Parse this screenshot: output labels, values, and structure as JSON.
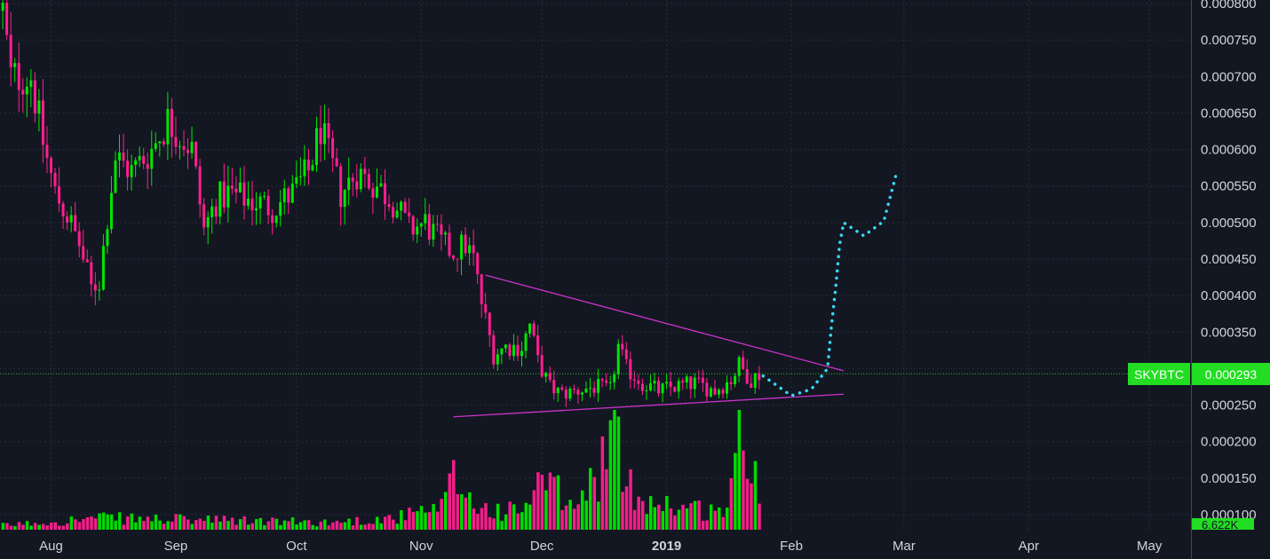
{
  "chart_data": {
    "type": "candlestick",
    "symbol": "SKYBTC",
    "last_price": "0.000293",
    "volume_label": "6.622K",
    "colors": {
      "background": "#131722",
      "up": "#00e600",
      "down": "#ff1f8f",
      "grid": "#2a2e39",
      "text": "#d1d4dc",
      "trendline": "#cc33cc",
      "projection": "#38d9f5",
      "price_line": "#2fbf2f",
      "label_bg": "#22dd22"
    },
    "y_axis": {
      "range": [
        8.5e-05,
        0.000805
      ],
      "ticks": [
        "0.000100",
        "0.000150",
        "0.000200",
        "0.000250",
        "0.000300",
        "0.000350",
        "0.000400",
        "0.000450",
        "0.000500",
        "0.000550",
        "0.000600",
        "0.000650",
        "0.000700",
        "0.000750",
        "0.000800"
      ]
    },
    "x_axis": {
      "labels": [
        {
          "text": "Aug",
          "date": "2018-08-01"
        },
        {
          "text": "Sep",
          "date": "2018-09-01"
        },
        {
          "text": "Oct",
          "date": "2018-10-01"
        },
        {
          "text": "Nov",
          "date": "2018-11-01"
        },
        {
          "text": "Dec",
          "date": "2018-12-01"
        },
        {
          "text": "2019",
          "date": "2019-01-01",
          "bold": true
        },
        {
          "text": "Feb",
          "date": "2019-02-01"
        },
        {
          "text": "Mar",
          "date": "2019-03-01"
        },
        {
          "text": "Apr",
          "date": "2019-04-01"
        },
        {
          "text": "May",
          "date": "2019-05-01"
        }
      ]
    },
    "price_path": [
      [
        "2018-07-20",
        0.00079
      ],
      [
        "2018-07-22",
        0.0007
      ],
      [
        "2018-07-27",
        0.0007
      ],
      [
        "2018-07-30",
        0.00061
      ],
      [
        "2018-08-02",
        0.00054
      ],
      [
        "2018-08-05",
        0.00051
      ],
      [
        "2018-08-08",
        0.00047
      ],
      [
        "2018-08-11",
        0.00041
      ],
      [
        "2018-08-13",
        0.00042
      ],
      [
        "2018-08-15",
        0.00051
      ],
      [
        "2018-08-17",
        0.00059
      ],
      [
        "2018-08-21",
        0.00057
      ],
      [
        "2018-08-26",
        0.0006
      ],
      [
        "2018-08-30",
        0.00064
      ],
      [
        "2018-09-05",
        0.0006
      ],
      [
        "2018-09-08",
        0.00049
      ],
      [
        "2018-09-11",
        0.00053
      ],
      [
        "2018-09-14",
        0.00054
      ],
      [
        "2018-09-20",
        0.00053
      ],
      [
        "2018-09-25",
        0.00052
      ],
      [
        "2018-09-30",
        0.00054
      ],
      [
        "2018-10-04",
        0.00057
      ],
      [
        "2018-10-07",
        0.00063
      ],
      [
        "2018-10-09",
        0.00059
      ],
      [
        "2018-10-12",
        0.00054
      ],
      [
        "2018-10-16",
        0.00057
      ],
      [
        "2018-10-21",
        0.00055
      ],
      [
        "2018-10-25",
        0.00053
      ],
      [
        "2018-10-29",
        0.00049
      ],
      [
        "2018-11-02",
        0.0005
      ],
      [
        "2018-11-06",
        0.00047
      ],
      [
        "2018-11-09",
        0.00046
      ],
      [
        "2018-11-12",
        0.00047
      ],
      [
        "2018-11-14",
        0.00045
      ],
      [
        "2018-11-16",
        0.00039
      ],
      [
        "2018-11-19",
        0.00032
      ],
      [
        "2018-11-22",
        0.00033
      ],
      [
        "2018-11-26",
        0.00033
      ],
      [
        "2018-11-28",
        0.00036
      ],
      [
        "2018-11-30",
        0.00031
      ],
      [
        "2018-12-03",
        0.000275
      ],
      [
        "2018-12-06",
        0.000265
      ],
      [
        "2018-12-10",
        0.00027
      ],
      [
        "2018-12-14",
        0.000275
      ],
      [
        "2018-12-18",
        0.00027
      ],
      [
        "2018-12-20",
        0.00033
      ],
      [
        "2018-12-22",
        0.0003
      ],
      [
        "2018-12-26",
        0.00028
      ],
      [
        "2018-12-30",
        0.00027
      ],
      [
        "2019-01-03",
        0.000275
      ],
      [
        "2019-01-08",
        0.00028
      ],
      [
        "2019-01-13",
        0.00027
      ],
      [
        "2019-01-17",
        0.000285
      ],
      [
        "2019-01-19",
        0.000305
      ],
      [
        "2019-01-22",
        0.000285
      ],
      [
        "2019-01-24",
        0.000293
      ]
    ],
    "volume_path": [
      [
        "2018-07-20",
        0.3
      ],
      [
        "2018-08-13",
        0.8
      ],
      [
        "2018-09-20",
        0.6
      ],
      [
        "2018-10-10",
        0.5
      ],
      [
        "2018-10-25",
        0.8
      ],
      [
        "2018-11-06",
        1.4
      ],
      [
        "2018-11-09",
        3.5
      ],
      [
        "2018-11-15",
        1.5
      ],
      [
        "2018-11-25",
        1.2
      ],
      [
        "2018-12-01",
        3.2
      ],
      [
        "2018-12-10",
        1.4
      ],
      [
        "2018-12-19",
        6.6
      ],
      [
        "2018-12-22",
        3.0
      ],
      [
        "2018-12-28",
        2.0
      ],
      [
        "2019-01-06",
        1.5
      ],
      [
        "2019-01-15",
        1.2
      ],
      [
        "2019-01-19",
        6.0
      ],
      [
        "2019-01-22",
        4.0
      ],
      [
        "2019-01-24",
        3.2
      ]
    ],
    "trendlines": [
      {
        "from": [
          "2018-11-17",
          0.000428
        ],
        "to": [
          "2019-02-14",
          0.000297
        ]
      },
      {
        "from": [
          "2018-11-09",
          0.000234
        ],
        "to": [
          "2019-02-14",
          0.000265
        ]
      }
    ],
    "projection_path": [
      [
        "2019-01-25",
        0.00029
      ],
      [
        "2019-02-01",
        0.000263
      ],
      [
        "2019-02-06",
        0.000272
      ],
      [
        "2019-02-10",
        0.0003
      ],
      [
        "2019-02-11",
        0.00036
      ],
      [
        "2019-02-12",
        0.00041
      ],
      [
        "2019-02-13",
        0.00047
      ],
      [
        "2019-02-14",
        0.0005
      ],
      [
        "2019-02-19",
        0.000482
      ],
      [
        "2019-02-24",
        0.000502
      ],
      [
        "2019-02-27",
        0.000565
      ]
    ]
  }
}
